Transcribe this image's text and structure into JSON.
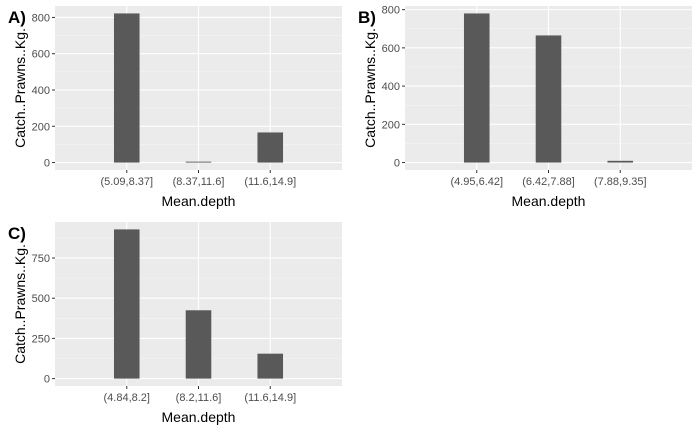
{
  "theme": {
    "panel_background": "#ebebeb",
    "major_grid": "#ffffff",
    "minor_grid": "#f5f5f5",
    "bar_fill": "#595959",
    "tick_color": "#333333",
    "tick_text_color": "#4d4d4d"
  },
  "chart_data": [
    {
      "panel_label": "A)",
      "type": "bar",
      "categories": [
        "(5.09,8.37]",
        "(8.37,11.6]",
        "(11.6,14.9]"
      ],
      "values": [
        822,
        5,
        166
      ],
      "xlabel": "Mean.depth",
      "ylabel": "Catch..Prawns..Kg.",
      "ylim": [
        -41,
        863
      ],
      "yticks": [
        0,
        200,
        400,
        600,
        800
      ],
      "ytick_labels": [
        "0",
        "200",
        "400",
        "600",
        "800"
      ],
      "grid": true
    },
    {
      "panel_label": "B)",
      "type": "bar",
      "categories": [
        "(4.95,6.42]",
        "(6.42,7.88]",
        "(7.88,9.35]"
      ],
      "values": [
        780,
        665,
        9
      ],
      "xlabel": "Mean.depth",
      "ylabel": "Catch..Prawns..Kg.",
      "ylim": [
        -39,
        819
      ],
      "yticks": [
        0,
        200,
        400,
        600,
        800
      ],
      "ytick_labels": [
        "0",
        "200",
        "400",
        "600",
        "800"
      ],
      "grid": true
    },
    {
      "panel_label": "C)",
      "type": "bar",
      "categories": [
        "(4.84,8.2]",
        "(8.2,11.6]",
        "(11.6,14.9]"
      ],
      "values": [
        928,
        425,
        155
      ],
      "xlabel": "Mean.depth",
      "ylabel": "Catch..Prawns..Kg.",
      "ylim": [
        -46,
        974
      ],
      "yticks": [
        0,
        250,
        500,
        750
      ],
      "ytick_labels": [
        "0",
        "250",
        "500",
        "750"
      ],
      "grid": true
    }
  ]
}
